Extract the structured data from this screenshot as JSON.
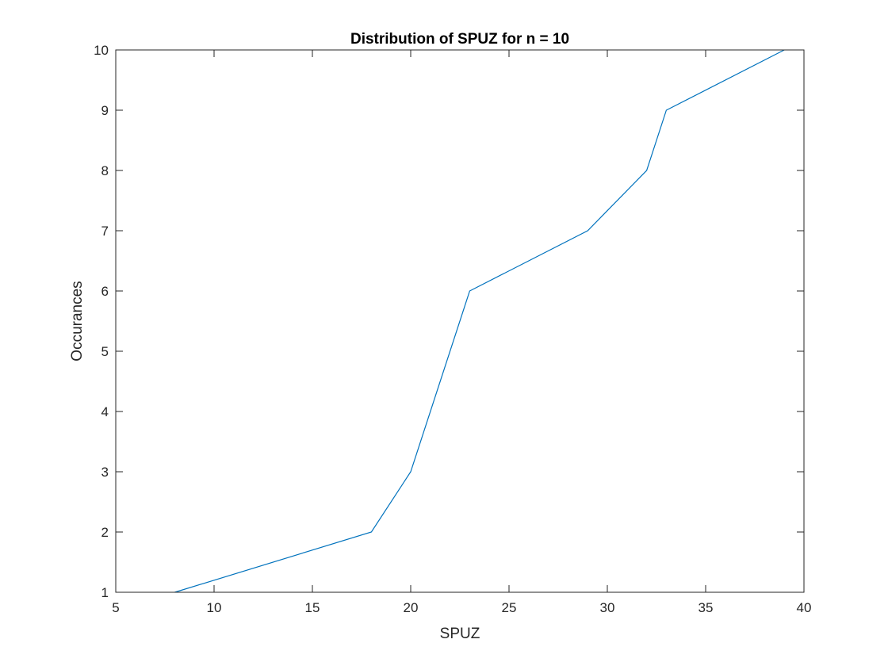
{
  "chart_data": {
    "type": "line",
    "title": "Distribution of SPUZ for n = 10",
    "xlabel": "SPUZ",
    "ylabel": "Occurances",
    "xlim": [
      5,
      40
    ],
    "ylim": [
      1,
      10
    ],
    "xticks": [
      5,
      10,
      15,
      20,
      25,
      30,
      35,
      40
    ],
    "yticks": [
      1,
      2,
      3,
      4,
      5,
      6,
      7,
      8,
      9,
      10
    ],
    "grid": false,
    "series": [
      {
        "color": "#0072BD",
        "x": [
          8,
          18,
          20,
          23,
          29,
          32,
          33,
          39
        ],
        "y": [
          1,
          2,
          3,
          6,
          7,
          8,
          9,
          10
        ]
      }
    ]
  }
}
